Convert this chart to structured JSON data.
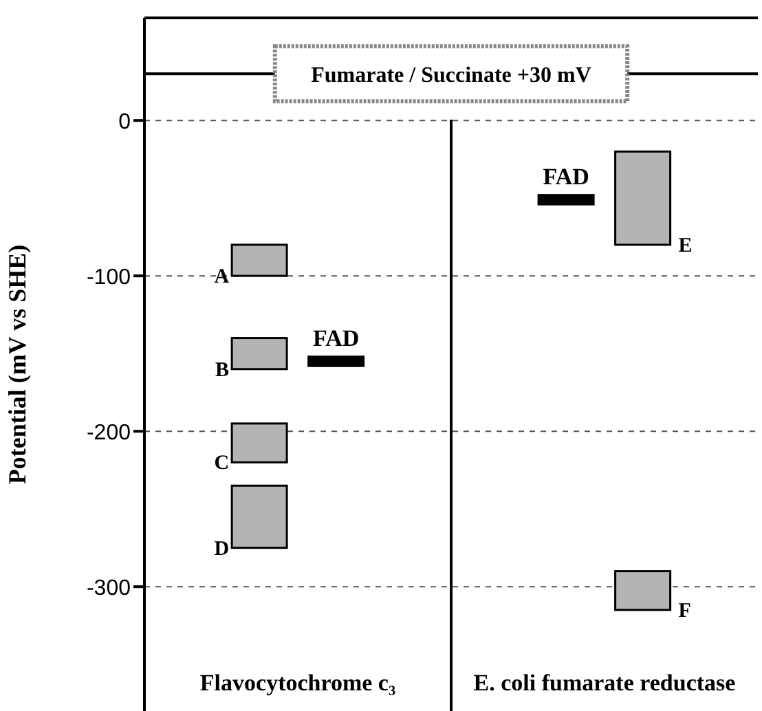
{
  "chart_data": {
    "type": "bar",
    "ylabel": "Potential (mV vs SHE)",
    "categories": [
      null,
      null,
      null,
      null,
      null,
      null,
      null,
      null
    ],
    "series": [
      {
        "name": "A",
        "color": "#b4b4b4",
        "values": [
          null,
          20,
          null,
          null,
          null,
          null,
          null,
          null
        ],
        "base": [
          null,
          -100,
          null,
          null,
          null,
          null,
          null,
          null
        ]
      },
      {
        "name": "B",
        "color": "#b4b4b4",
        "values": [
          null,
          20,
          null,
          null,
          null,
          null,
          null,
          null
        ],
        "base": [
          null,
          -160,
          null,
          null,
          null,
          null,
          null,
          null
        ]
      },
      {
        "name": "C",
        "color": "#b4b4b4",
        "values": [
          null,
          25,
          null,
          null,
          null,
          null,
          null,
          null
        ],
        "base": [
          null,
          -220,
          null,
          null,
          null,
          null,
          null,
          null
        ]
      },
      {
        "name": "D",
        "color": "#b4b4b4",
        "values": [
          null,
          40,
          null,
          null,
          null,
          null,
          null,
          null
        ],
        "base": [
          null,
          -275,
          null,
          null,
          null,
          null,
          null,
          null
        ]
      },
      {
        "name": "FAD",
        "color": "#000000",
        "values": [
          null,
          null,
          6,
          null,
          null,
          null,
          null,
          null
        ],
        "base": [
          null,
          null,
          -158,
          null,
          null,
          null,
          null,
          null
        ]
      },
      {
        "name": "FAD",
        "color": "#000000",
        "values": [
          null,
          null,
          null,
          null,
          null,
          6,
          null,
          null
        ],
        "base": [
          null,
          null,
          null,
          null,
          null,
          -54,
          null,
          null
        ]
      },
      {
        "name": "E",
        "color": "#b4b4b4",
        "values": [
          null,
          null,
          null,
          null,
          null,
          null,
          60,
          null
        ],
        "base": [
          null,
          null,
          null,
          null,
          null,
          null,
          -80,
          null
        ]
      },
      {
        "name": "F",
        "color": "#b4b4b4",
        "values": [
          null,
          null,
          null,
          null,
          null,
          null,
          25,
          null
        ],
        "base": [
          null,
          null,
          null,
          null,
          null,
          null,
          -315,
          null
        ]
      }
    ],
    "ylim": [
      -380,
      66
    ],
    "yticks": [
      0,
      -100,
      -200,
      -300
    ],
    "grid": "y",
    "ref_lines": [
      {
        "axis": "y",
        "value": 30,
        "label": "Fumarate / Succinate +30 mV"
      }
    ],
    "annotations": [
      "Flavocytochrome c₃",
      "E. coli fumarate reductase"
    ]
  }
}
